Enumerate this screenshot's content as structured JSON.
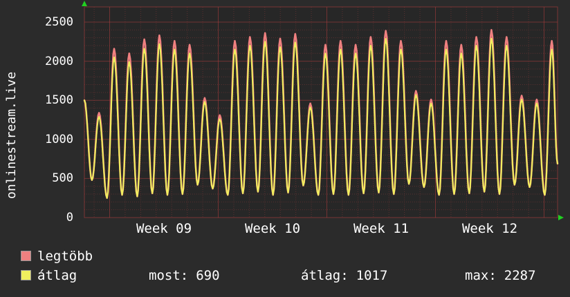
{
  "page": {
    "background": "#2b2b2b",
    "text_color": "#ffffff"
  },
  "chart": {
    "y_axis_title": "onlinestream.live"
  },
  "legend": {
    "items": [
      {
        "label": "legtöbb",
        "color": "#ef8080"
      },
      {
        "label": "átlag",
        "color": "#f0ef5e"
      }
    ]
  },
  "stats": {
    "items": [
      {
        "label": "most:",
        "value": "690"
      },
      {
        "label": "átlag:",
        "value": "1017"
      },
      {
        "label": "max:",
        "value": "2287"
      }
    ]
  },
  "chart_data": {
    "type": "line",
    "x_axis": {
      "labels": [
        "Week 09",
        "Week 10",
        "Week 11",
        "Week 12"
      ]
    },
    "y_axis": {
      "ticks": [
        0,
        500,
        1000,
        1500,
        2000,
        2500
      ],
      "range": [
        0,
        2600
      ]
    },
    "grid": true,
    "legend_position": "bottom-left",
    "start_value": 1500,
    "end_value": 690,
    "daily_troughs": [
      480,
      250,
      290,
      270,
      310,
      290,
      300,
      420,
      370,
      290,
      310,
      330,
      290,
      320,
      410,
      290,
      300,
      290,
      310,
      320,
      300,
      430,
      390,
      290,
      300,
      310,
      330,
      300,
      420,
      390,
      290
    ],
    "series": [
      {
        "name": "legtöbb",
        "color": "#ef8080",
        "daily_peaks": [
          1340,
          2160,
          2100,
          2280,
          2330,
          2260,
          2210,
          1530,
          1310,
          2260,
          2310,
          2360,
          2290,
          2350,
          1460,
          2210,
          2260,
          2210,
          2310,
          2390,
          2260,
          1620,
          1510,
          2260,
          2210,
          2310,
          2400,
          2310,
          1560,
          1510,
          2260
        ]
      },
      {
        "name": "átlag",
        "color": "#f0ef5e",
        "daily_peaks": [
          1290,
          2050,
          1990,
          2160,
          2220,
          2150,
          2100,
          1480,
          1260,
          2150,
          2200,
          2250,
          2180,
          2240,
          1410,
          2100,
          2150,
          2100,
          2200,
          2287,
          2150,
          1570,
          1460,
          2150,
          2100,
          2200,
          2290,
          2200,
          1510,
          1460,
          2150
        ]
      }
    ],
    "stats": {
      "most": 690,
      "atlag": 1017,
      "max": 2287
    },
    "colors": {
      "grid_major": "#b03e3e",
      "grid_minor": "#5a3030",
      "axis_arrow": "#21d021",
      "plot_bg": "#272727"
    }
  }
}
